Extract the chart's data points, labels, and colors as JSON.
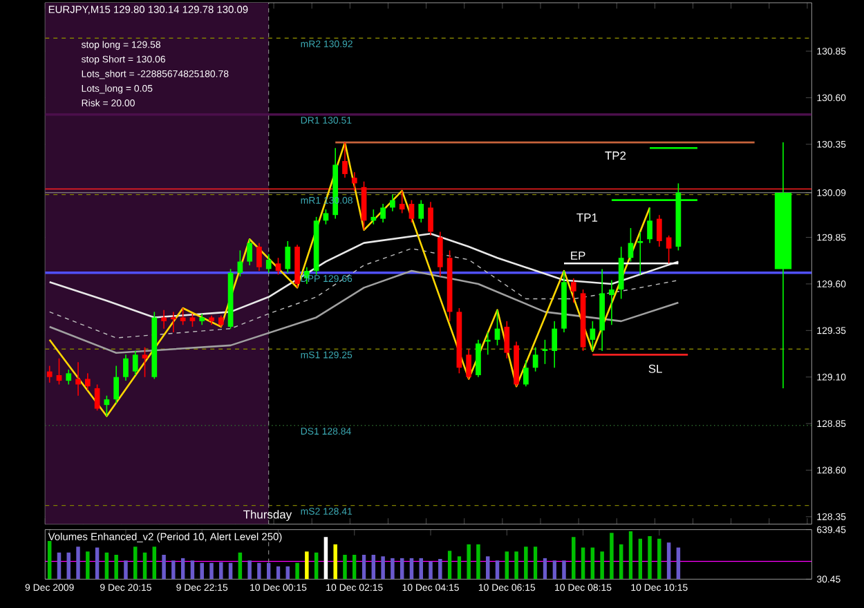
{
  "chart_data": [
    {
      "type": "candlestick",
      "title": "EURJPY,M15  129.80 130.14 129.78 130.09",
      "annotations": [
        "stop long =   129.58",
        "stop Short =   130.06",
        "Lots_short =  -22885674825180.78",
        "Lots_long =  0.05",
        "Risk =  20.00",
        "TP2",
        "TP1",
        "EP",
        "SL",
        "Thursday"
      ],
      "xlim": [
        "2009-12-09T18:08",
        "2009-12-10T14:15"
      ],
      "ylim": [
        128.31,
        131.11
      ],
      "yticks": [
        128.35,
        {
          "value": 128.6,
          "label": "128.60"
        },
        128.85,
        {
          "value": 129.1,
          "label": "129.10"
        },
        129.35,
        {
          "value": 129.6,
          "label": "129.60"
        },
        129.85,
        130.09,
        130.35,
        {
          "value": 130.6,
          "label": "130.60"
        },
        130.85
      ],
      "tick_labels": "y",
      "bands": [
        {
          "axis": "x",
          "from": "2009-12-09T18:08",
          "to": "2009-12-10T00:00",
          "color": "#2e0a2e"
        }
      ],
      "ref_lines": [
        {
          "axis": "y",
          "value": 130.92,
          "label": "mR2   130.92",
          "color": "#808000",
          "line_style": "dashed"
        },
        {
          "axis": "y",
          "value": 130.51,
          "label": "DR1   130.51",
          "color": "#4b0f4b",
          "line_style": "solid"
        },
        {
          "axis": "y",
          "value": 130.11,
          "color": "#ff2020",
          "line_style": "solid"
        },
        {
          "axis": "y",
          "value": 130.09,
          "color": "#909090",
          "line_style": "solid"
        },
        {
          "axis": "y",
          "value": 130.08,
          "label": "mR1   130.08",
          "color": "#808000",
          "line_style": "dashed"
        },
        {
          "axis": "y",
          "value": 129.66,
          "label": "DPP   129.66",
          "color": "#5050ff",
          "line_style": "solid"
        },
        {
          "axis": "y",
          "value": 129.25,
          "label": "mS1   129.25",
          "color": "#808000",
          "line_style": "dashed"
        },
        {
          "axis": "y",
          "value": 128.84,
          "label": "DS1   128.84",
          "color": "#2f6f2f",
          "line_style": "dotted"
        },
        {
          "axis": "y",
          "value": 128.41,
          "label": "mS2   128.41",
          "color": "#808000",
          "line_style": "dashed"
        },
        {
          "axis": "x",
          "value": "2009-12-10T00:00",
          "color": "#909090",
          "line_style": "dashed"
        }
      ],
      "series": [
        {
          "type": "line",
          "color": "#e8e8e8",
          "line_style": "solid",
          "x": [
            "2009-12-09T18:15",
            "2009-12-09T19:45",
            "2009-12-09T21:00",
            "2009-12-09T23:00",
            "2009-12-10T00:00",
            "2009-12-10T01:30",
            "2009-12-10T02:30",
            "2009-12-10T04:15",
            "2009-12-10T05:15",
            "2009-12-10T06:00",
            "2009-12-10T07:45",
            "2009-12-10T09:00",
            "2009-12-10T10:45"
          ],
          "values": [
            129.61,
            129.51,
            129.42,
            129.45,
            129.53,
            129.72,
            129.82,
            129.87,
            129.8,
            129.74,
            129.62,
            129.6,
            129.72
          ]
        },
        {
          "type": "line",
          "color": "#c0c0c0",
          "line_style": "dashed",
          "x": [
            "2009-12-09T18:15",
            "2009-12-09T20:00",
            "2009-12-09T23:00",
            "2009-12-10T00:00",
            "2009-12-10T01:15",
            "2009-12-10T02:30",
            "2009-12-10T03:45",
            "2009-12-10T05:15",
            "2009-12-10T06:45",
            "2009-12-10T08:00",
            "2009-12-10T09:30",
            "2009-12-10T10:45"
          ],
          "values": [
            129.45,
            129.31,
            129.36,
            129.44,
            129.53,
            129.7,
            129.79,
            129.73,
            129.52,
            129.52,
            129.57,
            129.62
          ]
        },
        {
          "type": "line",
          "color": "#a0a0a0",
          "line_style": "solid",
          "x": [
            "2009-12-09T18:15",
            "2009-12-09T20:00",
            "2009-12-09T23:00",
            "2009-12-10T01:15",
            "2009-12-10T02:30",
            "2009-12-10T03:45",
            "2009-12-10T05:30",
            "2009-12-10T07:15",
            "2009-12-10T09:15",
            "2009-12-10T10:45"
          ],
          "values": [
            129.37,
            129.23,
            129.27,
            129.42,
            129.58,
            129.67,
            129.6,
            129.45,
            129.4,
            129.5
          ]
        },
        {
          "type": "line",
          "color": "#ffd700",
          "line_style": "solid",
          "x": [
            "2009-12-09T18:15",
            "2009-12-09T19:45",
            "2009-12-09T21:45",
            "2009-12-09T22:45",
            "2009-12-09T23:30",
            "2009-12-10T00:45",
            "2009-12-10T02:00",
            "2009-12-10T02:30",
            "2009-12-10T03:30",
            "2009-12-10T05:15",
            "2009-12-10T06:00",
            "2009-12-10T06:30",
            "2009-12-10T07:45",
            "2009-12-10T08:30",
            "2009-12-10T10:00"
          ],
          "values": [
            129.3,
            128.89,
            129.47,
            129.37,
            129.84,
            129.58,
            130.36,
            129.89,
            130.1,
            129.09,
            129.46,
            129.05,
            129.67,
            129.24,
            130.01
          ]
        },
        {
          "type": "line",
          "color": "#c8643c",
          "line_style": "solid",
          "x": [
            "2009-12-10T01:45",
            "2009-12-10T12:45"
          ],
          "values": [
            130.36,
            130.36
          ]
        },
        {
          "type": "line",
          "color": "#00ff00",
          "line_style": "solid",
          "x": [
            "2009-12-10T10:00",
            "2009-12-10T11:15"
          ],
          "values": [
            130.33,
            130.33
          ]
        },
        {
          "type": "line",
          "color": "#00ff00",
          "line_style": "solid",
          "x": [
            "2009-12-10T09:00",
            "2009-12-10T11:15"
          ],
          "values": [
            130.05,
            130.05
          ]
        },
        {
          "type": "line",
          "color": "#ffffff",
          "line_style": "solid",
          "x": [
            "2009-12-10T07:45",
            "2009-12-10T10:45"
          ],
          "values": [
            129.71,
            129.71
          ]
        },
        {
          "type": "line",
          "color": "#ff2020",
          "line_style": "solid",
          "x": [
            "2009-12-10T08:30",
            "2009-12-10T11:00"
          ],
          "values": [
            129.22,
            129.22
          ]
        },
        {
          "x": [
            "2009-12-10T13:30"
          ],
          "ohlc": [
            [
              129.68,
              130.36,
              129.04,
              130.09
            ]
          ],
          "colors": [
            "#00ff00"
          ]
        },
        {
          "x": [
            "2009-12-09T18:15",
            "2009-12-09T18:30",
            "2009-12-09T18:45",
            "2009-12-09T19:00",
            "2009-12-09T19:15",
            "2009-12-09T19:30",
            "2009-12-09T19:45",
            "2009-12-09T20:00",
            "2009-12-09T20:15",
            "2009-12-09T20:30",
            "2009-12-09T20:45",
            "2009-12-09T21:00",
            "2009-12-09T21:15",
            "2009-12-09T21:30",
            "2009-12-09T21:45",
            "2009-12-09T22:00",
            "2009-12-09T22:15",
            "2009-12-09T22:30",
            "2009-12-09T22:45",
            "2009-12-09T23:00",
            "2009-12-09T23:15",
            "2009-12-09T23:30",
            "2009-12-09T23:45",
            "2009-12-10T00:00",
            "2009-12-10T00:15",
            "2009-12-10T00:30",
            "2009-12-10T00:45",
            "2009-12-10T01:00",
            "2009-12-10T01:15",
            "2009-12-10T01:30",
            "2009-12-10T01:45",
            "2009-12-10T02:00",
            "2009-12-10T02:15",
            "2009-12-10T02:30",
            "2009-12-10T02:45",
            "2009-12-10T03:00",
            "2009-12-10T03:15",
            "2009-12-10T03:30",
            "2009-12-10T03:45",
            "2009-12-10T04:00",
            "2009-12-10T04:15",
            "2009-12-10T04:30",
            "2009-12-10T04:45",
            "2009-12-10T05:00",
            "2009-12-10T05:15",
            "2009-12-10T05:30",
            "2009-12-10T05:45",
            "2009-12-10T06:00",
            "2009-12-10T06:15",
            "2009-12-10T06:30",
            "2009-12-10T06:45",
            "2009-12-10T07:00",
            "2009-12-10T07:15",
            "2009-12-10T07:30",
            "2009-12-10T07:45",
            "2009-12-10T08:00",
            "2009-12-10T08:15",
            "2009-12-10T08:30",
            "2009-12-10T08:45",
            "2009-12-10T09:00",
            "2009-12-10T09:15",
            "2009-12-10T09:30",
            "2009-12-10T09:45",
            "2009-12-10T10:00",
            "2009-12-10T10:15",
            "2009-12-10T10:30",
            "2009-12-10T10:45"
          ],
          "ohlc": [
            [
              129.13,
              129.16,
              129.07,
              129.1
            ],
            [
              129.11,
              129.2,
              129.06,
              129.08
            ],
            [
              129.08,
              129.14,
              129.06,
              129.12
            ],
            [
              129.09,
              129.18,
              129.0,
              129.06
            ],
            [
              129.09,
              129.12,
              129.03,
              129.05
            ],
            [
              129.04,
              129.06,
              128.92,
              128.93
            ],
            [
              128.95,
              129.0,
              128.89,
              128.98
            ],
            [
              128.98,
              129.16,
              128.96,
              129.1
            ],
            [
              129.1,
              129.22,
              129.08,
              129.2
            ],
            [
              129.13,
              129.24,
              129.11,
              129.22
            ],
            [
              129.22,
              129.26,
              129.1,
              129.2
            ],
            [
              129.1,
              129.45,
              129.09,
              129.42
            ],
            [
              129.42,
              129.46,
              129.36,
              129.4
            ],
            [
              129.42,
              129.45,
              129.34,
              129.41
            ],
            [
              129.42,
              129.47,
              129.38,
              129.4
            ],
            [
              129.42,
              129.44,
              129.37,
              129.4
            ],
            [
              129.4,
              129.44,
              129.38,
              129.42
            ],
            [
              129.42,
              129.43,
              129.38,
              129.4
            ],
            [
              129.42,
              129.43,
              129.37,
              129.38
            ],
            [
              129.37,
              129.68,
              129.36,
              129.66
            ],
            [
              129.66,
              129.78,
              129.64,
              129.72
            ],
            [
              129.72,
              129.84,
              129.7,
              129.82
            ],
            [
              129.8,
              129.82,
              129.67,
              129.69
            ],
            [
              129.68,
              129.76,
              129.66,
              129.73
            ],
            [
              129.71,
              129.74,
              129.65,
              129.67
            ],
            [
              129.68,
              129.83,
              129.66,
              129.8
            ],
            [
              129.8,
              129.81,
              129.58,
              129.6
            ],
            [
              129.63,
              129.69,
              129.6,
              129.67
            ],
            [
              129.67,
              129.96,
              129.65,
              129.94
            ],
            [
              129.94,
              130.0,
              129.92,
              129.98
            ],
            [
              129.97,
              130.33,
              129.95,
              130.24
            ],
            [
              130.26,
              130.36,
              130.17,
              130.19
            ],
            [
              130.17,
              130.2,
              130.1,
              130.14
            ],
            [
              130.12,
              130.15,
              129.89,
              129.94
            ],
            [
              129.94,
              130.0,
              129.92,
              129.96
            ],
            [
              129.95,
              130.03,
              129.93,
              130.01
            ],
            [
              130.01,
              130.08,
              129.99,
              130.05
            ],
            [
              130.03,
              130.1,
              129.98,
              130.0
            ],
            [
              130.03,
              130.05,
              129.93,
              129.95
            ],
            [
              129.95,
              130.05,
              129.93,
              130.03
            ],
            [
              130.01,
              130.04,
              129.86,
              129.88
            ],
            [
              129.85,
              129.88,
              129.64,
              129.69
            ],
            [
              129.74,
              129.78,
              129.4,
              129.45
            ],
            [
              129.45,
              129.47,
              129.12,
              129.15
            ],
            [
              129.22,
              129.25,
              129.09,
              129.1
            ],
            [
              129.11,
              129.3,
              129.1,
              129.28
            ],
            [
              129.29,
              129.34,
              129.22,
              129.3
            ],
            [
              129.3,
              129.46,
              129.27,
              129.36
            ],
            [
              129.37,
              129.4,
              129.2,
              129.23
            ],
            [
              129.27,
              129.29,
              129.05,
              129.06
            ],
            [
              129.06,
              129.19,
              129.05,
              129.15
            ],
            [
              129.15,
              129.26,
              129.13,
              129.22
            ],
            [
              129.24,
              129.3,
              129.17,
              129.25
            ],
            [
              129.24,
              129.4,
              129.15,
              129.36
            ],
            [
              129.36,
              129.67,
              129.34,
              129.61
            ],
            [
              129.61,
              129.63,
              129.5,
              129.56
            ],
            [
              129.55,
              129.57,
              129.24,
              129.26
            ],
            [
              129.3,
              129.4,
              129.24,
              129.36
            ],
            [
              129.35,
              129.68,
              129.24,
              129.55
            ],
            [
              129.54,
              129.62,
              129.38,
              129.57
            ],
            [
              129.57,
              129.8,
              129.52,
              129.74
            ],
            [
              129.74,
              129.9,
              129.72,
              129.82
            ],
            [
              129.82,
              129.88,
              129.65,
              129.83
            ],
            [
              129.84,
              130.01,
              129.82,
              129.94
            ],
            [
              129.95,
              129.97,
              129.8,
              129.83
            ],
            [
              129.85,
              129.86,
              129.71,
              129.79
            ],
            [
              129.8,
              130.14,
              129.78,
              130.09
            ]
          ],
          "colors": [
            "#ff0000",
            "#ff0000",
            "#00ff00",
            "#ff0000",
            "#ff0000",
            "#ff0000",
            "#00ff00",
            "#00ff00",
            "#00ff00",
            "#00ff00",
            "#ff0000",
            "#00ff00",
            "#ff0000",
            "#ff0000",
            "#ff0000",
            "#ff0000",
            "#00ff00",
            "#ff0000",
            "#ff0000",
            "#00ff00",
            "#00ff00",
            "#00ff00",
            "#ff0000",
            "#00ff00",
            "#ff0000",
            "#00ff00",
            "#ff0000",
            "#00ff00",
            "#00ff00",
            "#00ff00",
            "#00ff00",
            "#ff0000",
            "#ff0000",
            "#ff0000",
            "#00ff00",
            "#00ff00",
            "#00ff00",
            "#ff0000",
            "#ff0000",
            "#00ff00",
            "#ff0000",
            "#ff0000",
            "#ff0000",
            "#ff0000",
            "#ff0000",
            "#00ff00",
            "#00ff00",
            "#00ff00",
            "#ff0000",
            "#ff0000",
            "#00ff00",
            "#00ff00",
            "#00ff00",
            "#00ff00",
            "#00ff00",
            "#ff0000",
            "#ff0000",
            "#00ff00",
            "#00ff00",
            "#00ff00",
            "#00ff00",
            "#00ff00",
            "#00ff00",
            "#00ff00",
            "#ff0000",
            "#ff0000",
            "#00ff00"
          ]
        }
      ]
    },
    {
      "type": "bar",
      "title": "Volumes Enhanced_v2  (Period 10, Alert Level 250)",
      "xlim": [
        "2009-12-09T18:08",
        "2009-12-10T14:15"
      ],
      "ylim": [
        30.45,
        639.45
      ],
      "yticks": [
        30.45,
        639.45
      ],
      "xticks": [
        {
          "value": "2009-12-09T18:15",
          "label": "9 Dec 2009"
        },
        {
          "value": "2009-12-09T20:15",
          "label": "9 Dec 20:15"
        },
        {
          "value": "2009-12-09T22:15",
          "label": "9 Dec 22:15"
        },
        {
          "value": "2009-12-10T00:15",
          "label": "10 Dec 00:15"
        },
        {
          "value": "2009-12-10T02:15",
          "label": "10 Dec 02:15"
        },
        {
          "value": "2009-12-10T04:15",
          "label": "10 Dec 04:15"
        },
        {
          "value": "2009-12-10T06:15",
          "label": "10 Dec 06:15"
        },
        {
          "value": "2009-12-10T08:15",
          "label": "10 Dec 08:15"
        },
        {
          "value": "2009-12-10T10:15",
          "label": "10 Dec 10:15"
        }
      ],
      "ref_lines": [
        {
          "axis": "y",
          "value": 250,
          "color": "#ff00ff",
          "line_style": "solid"
        },
        {
          "axis": "x",
          "value": "2009-12-10T00:00",
          "color": "#909090",
          "line_style": "dashed"
        }
      ],
      "series": [
        {
          "x": [
            "2009-12-09T18:15",
            "2009-12-09T18:30",
            "2009-12-09T18:45",
            "2009-12-09T19:00",
            "2009-12-09T19:15",
            "2009-12-09T19:30",
            "2009-12-09T19:45",
            "2009-12-09T20:00",
            "2009-12-09T20:15",
            "2009-12-09T20:30",
            "2009-12-09T20:45",
            "2009-12-09T21:00",
            "2009-12-09T21:15",
            "2009-12-09T21:30",
            "2009-12-09T21:45",
            "2009-12-09T22:00",
            "2009-12-09T22:15",
            "2009-12-09T22:30",
            "2009-12-09T22:45",
            "2009-12-09T23:00",
            "2009-12-09T23:15",
            "2009-12-09T23:30",
            "2009-12-09T23:45",
            "2009-12-10T00:00",
            "2009-12-10T00:15",
            "2009-12-10T00:30",
            "2009-12-10T00:45",
            "2009-12-10T01:00",
            "2009-12-10T01:15",
            "2009-12-10T01:30",
            "2009-12-10T01:45",
            "2009-12-10T02:00",
            "2009-12-10T02:15",
            "2009-12-10T02:30",
            "2009-12-10T02:45",
            "2009-12-10T03:00",
            "2009-12-10T03:15",
            "2009-12-10T03:30",
            "2009-12-10T03:45",
            "2009-12-10T04:00",
            "2009-12-10T04:15",
            "2009-12-10T04:30",
            "2009-12-10T04:45",
            "2009-12-10T05:00",
            "2009-12-10T05:15",
            "2009-12-10T05:30",
            "2009-12-10T05:45",
            "2009-12-10T06:00",
            "2009-12-10T06:15",
            "2009-12-10T06:30",
            "2009-12-10T06:45",
            "2009-12-10T07:00",
            "2009-12-10T07:15",
            "2009-12-10T07:30",
            "2009-12-10T07:45",
            "2009-12-10T08:00",
            "2009-12-10T08:15",
            "2009-12-10T08:30",
            "2009-12-10T08:45",
            "2009-12-10T09:00",
            "2009-12-10T09:15",
            "2009-12-10T09:30",
            "2009-12-10T09:45",
            "2009-12-10T10:00",
            "2009-12-10T10:15",
            "2009-12-10T10:30",
            "2009-12-10T10:45"
          ],
          "values": [
            500,
            360,
            360,
            430,
            370,
            420,
            360,
            330,
            260,
            430,
            360,
            430,
            330,
            260,
            290,
            260,
            230,
            230,
            240,
            230,
            360,
            260,
            230,
            230,
            190,
            190,
            230,
            370,
            360,
            550,
            460,
            330,
            330,
            330,
            330,
            310,
            290,
            290,
            290,
            290,
            250,
            280,
            380,
            310,
            460,
            460,
            310,
            260,
            370,
            370,
            430,
            430,
            290,
            260,
            260,
            550,
            420,
            420,
            370,
            600,
            460,
            620,
            530,
            560,
            530,
            480,
            420
          ],
          "colors": [
            "#00c000",
            "#6a5acd",
            "#6a5acd",
            "#6a5acd",
            "#00c000",
            "#6a5acd",
            "#00c000",
            "#00c000",
            "#6a5acd",
            "#00c000",
            "#00c000",
            "#00c000",
            "#6a5acd",
            "#6a5acd",
            "#6a5acd",
            "#6a5acd",
            "#6a5acd",
            "#6a5acd",
            "#6a5acd",
            "#6a5acd",
            "#00c000",
            "#6a5acd",
            "#6a5acd",
            "#6a5acd",
            "#6a5acd",
            "#6a5acd",
            "#00c000",
            "#ffff00",
            "#00c000",
            "#ffffff",
            "#ffff00",
            "#00c000",
            "#00c000",
            "#6a5acd",
            "#6a5acd",
            "#6a5acd",
            "#6a5acd",
            "#6a5acd",
            "#6a5acd",
            "#6a5acd",
            "#6a5acd",
            "#6a5acd",
            "#00c000",
            "#00c000",
            "#00c000",
            "#00c000",
            "#6a5acd",
            "#6a5acd",
            "#00c000",
            "#00c000",
            "#00c000",
            "#00c000",
            "#6a5acd",
            "#6a5acd",
            "#6a5acd",
            "#00c000",
            "#00c000",
            "#00c000",
            "#00c000",
            "#00c000",
            "#00c000",
            "#00c000",
            "#00c000",
            "#00c000",
            "#00c000",
            "#6a5acd",
            "#6a5acd"
          ]
        }
      ]
    }
  ]
}
